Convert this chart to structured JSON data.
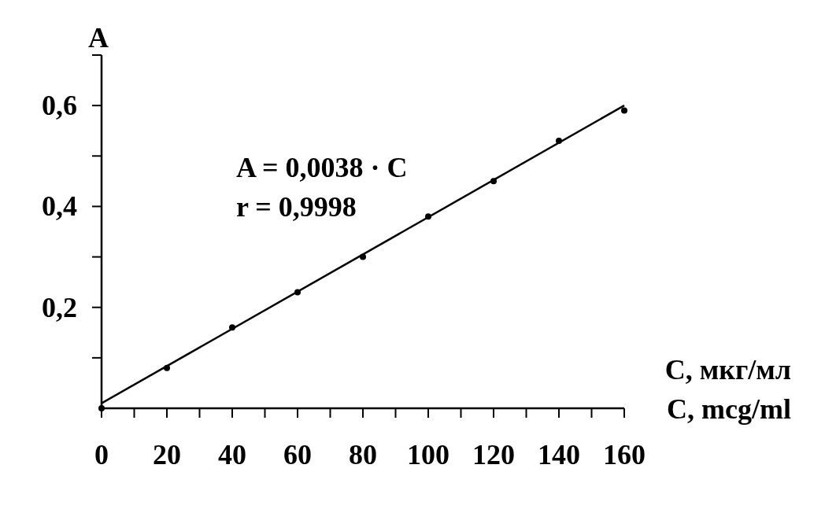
{
  "chart_data": {
    "type": "scatter",
    "ylabel": "A",
    "xlabel": "C, мкг/мл\nC, mcg/ml",
    "xlim": [
      0,
      160
    ],
    "ylim": [
      0,
      0.7
    ],
    "xticks": [
      0,
      {
        "value": 10,
        "label": null
      },
      20,
      {
        "value": 30,
        "label": null
      },
      40,
      {
        "value": 50,
        "label": null
      },
      60,
      {
        "value": 70,
        "label": null
      },
      80,
      {
        "value": 90,
        "label": null
      },
      100,
      {
        "value": 110,
        "label": null
      },
      120,
      {
        "value": 130,
        "label": null
      },
      140,
      {
        "value": 150,
        "label": null
      },
      160
    ],
    "yticks": [
      {
        "value": 0.1,
        "label": null
      },
      {
        "value": 0.2,
        "label": "0,2"
      },
      {
        "value": 0.3,
        "label": null
      },
      {
        "value": 0.4,
        "label": "0,4"
      },
      {
        "value": 0.5,
        "label": null
      },
      {
        "value": 0.6,
        "label": "0,6"
      },
      {
        "value": 0.7,
        "label": null
      }
    ],
    "grid": false,
    "marker": "circle",
    "annotations": [
      "A = 0,0038 · C",
      "r = 0,9998"
    ],
    "series": [
      {
        "color": "#000000",
        "x": [
          0,
          20,
          40,
          60,
          80,
          100,
          120,
          140,
          160
        ],
        "values": [
          0,
          0.08,
          0.16,
          0.23,
          0.3,
          0.38,
          0.45,
          0.53,
          0.59
        ]
      },
      {
        "type": "line",
        "color": "#000000",
        "marker": "none",
        "line_style": "solid",
        "x": [
          0,
          160
        ],
        "values": [
          0.01,
          0.6
        ]
      }
    ]
  }
}
